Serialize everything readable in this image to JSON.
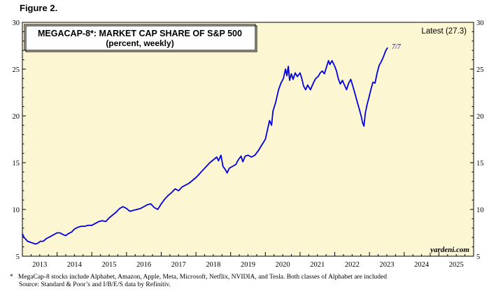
{
  "figure_label": "Figure 2.",
  "footnote": {
    "marker": "*",
    "line1": "MegaCap-8 stocks include Alphabet, Amazon, Apple, Meta, Microsoft, Netflix, NVIDIA, and Tesla. Both classes of Alphabet are included",
    "line2": "Source: Standard & Poor’s and I/B/E/S data by Refinitiv."
  },
  "colors": {
    "plot_bg": "#fdf6d2",
    "line": "#0000e0",
    "axis": "#000000"
  },
  "chart_data": {
    "type": "line",
    "title": "MEGACAP-8*: MARKET CAP SHARE OF S&P 500",
    "subtitle": "(percent, weekly)",
    "latest_label": "Latest (27.3)",
    "end_label": "7/7",
    "watermark": "yardeni.com",
    "ylim": [
      5,
      30
    ],
    "yticks": [
      5,
      10,
      15,
      20,
      25,
      30
    ],
    "xlim": [
      2013.0,
      2026.0
    ],
    "xtick_labels": [
      "2013",
      "2014",
      "2015",
      "2016",
      "2017",
      "2018",
      "2019",
      "2020",
      "2021",
      "2022",
      "2023",
      "2024",
      "2025"
    ],
    "grid": false,
    "series": [
      {
        "points": [
          [
            2013.0,
            7.4
          ],
          [
            2013.05,
            7.0
          ],
          [
            2013.1,
            6.8
          ],
          [
            2013.15,
            6.6
          ],
          [
            2013.22,
            6.5
          ],
          [
            2013.3,
            6.4
          ],
          [
            2013.38,
            6.3
          ],
          [
            2013.45,
            6.4
          ],
          [
            2013.52,
            6.6
          ],
          [
            2013.6,
            6.6
          ],
          [
            2013.7,
            6.9
          ],
          [
            2013.8,
            7.1
          ],
          [
            2013.9,
            7.3
          ],
          [
            2014.0,
            7.5
          ],
          [
            2014.08,
            7.5
          ],
          [
            2014.18,
            7.3
          ],
          [
            2014.25,
            7.2
          ],
          [
            2014.32,
            7.4
          ],
          [
            2014.42,
            7.6
          ],
          [
            2014.5,
            7.9
          ],
          [
            2014.6,
            8.1
          ],
          [
            2014.7,
            8.2
          ],
          [
            2014.8,
            8.2
          ],
          [
            2014.88,
            8.3
          ],
          [
            2015.0,
            8.3
          ],
          [
            2015.1,
            8.5
          ],
          [
            2015.2,
            8.7
          ],
          [
            2015.3,
            8.8
          ],
          [
            2015.4,
            8.7
          ],
          [
            2015.5,
            9.1
          ],
          [
            2015.6,
            9.4
          ],
          [
            2015.7,
            9.7
          ],
          [
            2015.8,
            10.1
          ],
          [
            2015.9,
            10.3
          ],
          [
            2016.0,
            10.1
          ],
          [
            2016.1,
            9.8
          ],
          [
            2016.2,
            9.9
          ],
          [
            2016.3,
            10.0
          ],
          [
            2016.4,
            10.1
          ],
          [
            2016.5,
            10.3
          ],
          [
            2016.6,
            10.5
          ],
          [
            2016.7,
            10.6
          ],
          [
            2016.8,
            10.2
          ],
          [
            2016.9,
            10.0
          ],
          [
            2017.0,
            10.6
          ],
          [
            2017.1,
            11.1
          ],
          [
            2017.2,
            11.5
          ],
          [
            2017.3,
            11.8
          ],
          [
            2017.4,
            12.2
          ],
          [
            2017.5,
            12.0
          ],
          [
            2017.6,
            12.4
          ],
          [
            2017.7,
            12.6
          ],
          [
            2017.8,
            12.8
          ],
          [
            2017.9,
            13.1
          ],
          [
            2018.0,
            13.4
          ],
          [
            2018.1,
            13.8
          ],
          [
            2018.2,
            14.2
          ],
          [
            2018.3,
            14.6
          ],
          [
            2018.4,
            15.0
          ],
          [
            2018.5,
            15.3
          ],
          [
            2018.6,
            15.6
          ],
          [
            2018.65,
            15.2
          ],
          [
            2018.72,
            15.8
          ],
          [
            2018.78,
            14.6
          ],
          [
            2018.84,
            14.3
          ],
          [
            2018.9,
            13.9
          ],
          [
            2018.96,
            14.4
          ],
          [
            2019.05,
            14.6
          ],
          [
            2019.15,
            14.8
          ],
          [
            2019.22,
            15.3
          ],
          [
            2019.3,
            15.7
          ],
          [
            2019.35,
            15.1
          ],
          [
            2019.42,
            15.7
          ],
          [
            2019.5,
            15.8
          ],
          [
            2019.6,
            15.6
          ],
          [
            2019.7,
            15.8
          ],
          [
            2019.8,
            16.3
          ],
          [
            2019.9,
            16.9
          ],
          [
            2020.0,
            17.5
          ],
          [
            2020.06,
            18.5
          ],
          [
            2020.12,
            19.5
          ],
          [
            2020.18,
            19.0
          ],
          [
            2020.22,
            20.5
          ],
          [
            2020.3,
            21.5
          ],
          [
            2020.38,
            22.8
          ],
          [
            2020.45,
            23.5
          ],
          [
            2020.52,
            24.0
          ],
          [
            2020.58,
            25.0
          ],
          [
            2020.62,
            24.3
          ],
          [
            2020.66,
            25.3
          ],
          [
            2020.7,
            23.8
          ],
          [
            2020.75,
            24.5
          ],
          [
            2020.8,
            23.9
          ],
          [
            2020.86,
            24.6
          ],
          [
            2020.92,
            24.2
          ],
          [
            2021.0,
            24.6
          ],
          [
            2021.05,
            24.0
          ],
          [
            2021.1,
            23.2
          ],
          [
            2021.16,
            22.8
          ],
          [
            2021.22,
            23.3
          ],
          [
            2021.3,
            22.8
          ],
          [
            2021.38,
            23.5
          ],
          [
            2021.45,
            24.0
          ],
          [
            2021.52,
            24.2
          ],
          [
            2021.58,
            24.6
          ],
          [
            2021.64,
            24.8
          ],
          [
            2021.7,
            24.5
          ],
          [
            2021.76,
            25.2
          ],
          [
            2021.82,
            25.9
          ],
          [
            2021.86,
            25.5
          ],
          [
            2021.92,
            25.9
          ],
          [
            2022.0,
            25.3
          ],
          [
            2022.05,
            24.8
          ],
          [
            2022.1,
            24.0
          ],
          [
            2022.16,
            23.4
          ],
          [
            2022.22,
            23.8
          ],
          [
            2022.28,
            23.3
          ],
          [
            2022.34,
            22.8
          ],
          [
            2022.4,
            23.5
          ],
          [
            2022.46,
            23.9
          ],
          [
            2022.52,
            23.2
          ],
          [
            2022.58,
            22.4
          ],
          [
            2022.64,
            21.6
          ],
          [
            2022.7,
            20.8
          ],
          [
            2022.76,
            20.0
          ],
          [
            2022.8,
            19.3
          ],
          [
            2022.84,
            18.9
          ],
          [
            2022.88,
            20.3
          ],
          [
            2022.93,
            21.2
          ],
          [
            2022.98,
            21.9
          ],
          [
            2023.04,
            22.8
          ],
          [
            2023.1,
            23.6
          ],
          [
            2023.16,
            23.5
          ],
          [
            2023.22,
            24.6
          ],
          [
            2023.28,
            25.4
          ],
          [
            2023.34,
            25.8
          ],
          [
            2023.4,
            26.3
          ],
          [
            2023.46,
            26.9
          ],
          [
            2023.52,
            27.3
          ]
        ]
      }
    ]
  }
}
